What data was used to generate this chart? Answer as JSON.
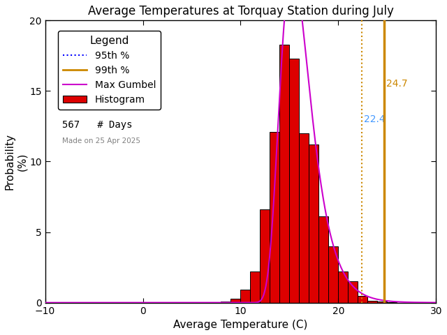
{
  "title": "Average Temperatures at Torquay Station during July",
  "xlabel": "Average Temperature (C)",
  "ylabel": "Probability\n(%)",
  "xlim": [
    -10,
    30
  ],
  "ylim": [
    0,
    20
  ],
  "xticks": [
    -10,
    0,
    10,
    20,
    30
  ],
  "yticks": [
    0,
    5,
    10,
    15,
    20
  ],
  "bar_lefts": [
    8,
    9,
    10,
    11,
    12,
    13,
    14,
    15,
    16,
    17,
    18,
    19,
    20,
    21,
    22,
    23,
    24,
    25
  ],
  "bar_heights": [
    0.1,
    0.3,
    0.9,
    2.2,
    6.6,
    12.1,
    18.3,
    17.3,
    12.0,
    11.2,
    6.1,
    4.0,
    2.2,
    1.5,
    0.5,
    0.15,
    0.1,
    0.05
  ],
  "bar_color": "#dd0000",
  "bar_edgecolor": "#000000",
  "gumbel_mu": 15.3,
  "gumbel_beta": 1.55,
  "percentile_95": 22.4,
  "percentile_99": 24.7,
  "percentile_95_color": "#0000ff",
  "percentile_99_color": "#cc8800",
  "n_days": 567,
  "made_on": "Made on 25 Apr 2025",
  "background_color": "#ffffff",
  "title_fontsize": 12,
  "axis_fontsize": 11,
  "legend_fontsize": 10,
  "gumbel_color": "#cc00cc",
  "annotation_95_color": "#4499ff",
  "annotation_99_color": "#cc8800"
}
